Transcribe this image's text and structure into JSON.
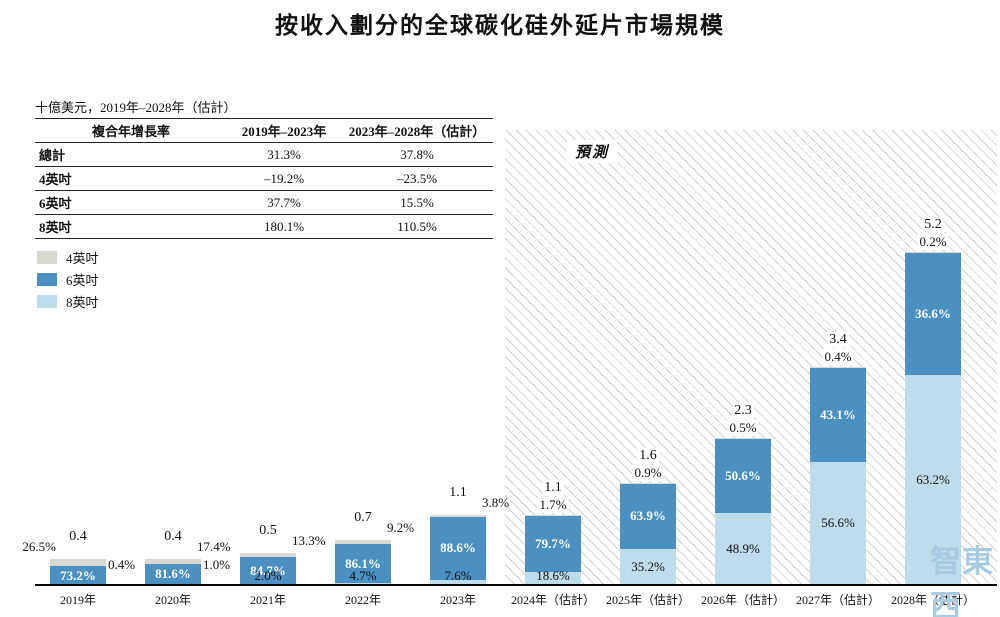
{
  "title": "按收入劃分的全球碳化硅外延片市場規模",
  "subtitle": "十億美元，2019年–2028年（估計）",
  "forecast_label": "預測",
  "watermark": "智東西",
  "cagr_table": {
    "headers": [
      "複合年增長率",
      "2019年–2023年",
      "2023年–2028年（估計）"
    ],
    "rows": [
      {
        "label": "總計",
        "v1": "31.3%",
        "v2": "37.8%"
      },
      {
        "label": "4英吋",
        "v1": "–19.2%",
        "v2": "–23.5%"
      },
      {
        "label": "6英吋",
        "v1": "37.7%",
        "v2": "15.5%"
      },
      {
        "label": "8英吋",
        "v1": "180.1%",
        "v2": "110.5%"
      }
    ]
  },
  "legend": [
    {
      "label": "4英吋",
      "color": "#d9d9d2"
    },
    {
      "label": "6英吋",
      "color": "#4b90c3"
    },
    {
      "label": "8英吋",
      "color": "#bddcec"
    }
  ],
  "chart_data": {
    "type": "bar",
    "stacked": true,
    "unit": "十億美元",
    "title": "按收入劃分的全球碳化硅外延片市場規模",
    "categories": [
      "2019年",
      "2020年",
      "2021年",
      "2022年",
      "2023年",
      "2024年（估計）",
      "2025年（估計）",
      "2026年（估計）",
      "2027年（估計）",
      "2028年（估計）"
    ],
    "totals": [
      0.4,
      0.4,
      0.5,
      0.7,
      1.1,
      1.1,
      1.6,
      2.3,
      3.4,
      5.2
    ],
    "series": [
      {
        "name": "8英吋",
        "color": "#bddcec",
        "share_pct": [
          0.4,
          1.0,
          2.0,
          4.7,
          7.6,
          18.6,
          35.2,
          48.9,
          56.6,
          63.2
        ]
      },
      {
        "name": "6英吋",
        "color": "#4b90c3",
        "share_pct": [
          73.2,
          81.6,
          84.7,
          86.1,
          88.6,
          79.7,
          63.9,
          50.6,
          43.1,
          36.6
        ]
      },
      {
        "name": "4英吋",
        "color": "#d9d9d2",
        "share_pct": [
          26.5,
          17.4,
          13.3,
          9.2,
          3.8,
          1.7,
          0.9,
          0.5,
          0.4,
          0.2
        ]
      }
    ],
    "forecast_start_index": 5,
    "ylim": [
      0,
      5.2
    ],
    "legend_position": "left",
    "grid": false
  }
}
